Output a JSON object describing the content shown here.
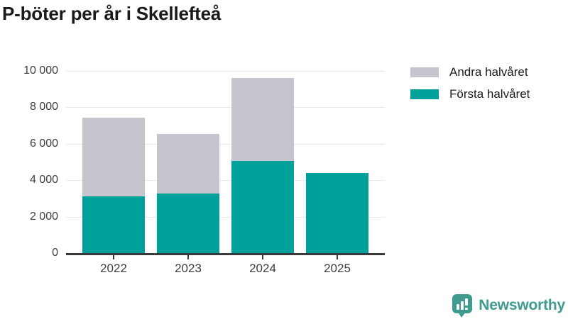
{
  "title": "P-böter per år i Skellefteå",
  "brand": {
    "name": "Newsworthy",
    "color": "#3f9a90"
  },
  "legend": [
    {
      "label": "Andra halvåret",
      "color": "#c6c5cd"
    },
    {
      "label": "Första halvåret",
      "color": "#00a19a"
    }
  ],
  "chart_data": {
    "type": "bar",
    "stacked": true,
    "title": "P-böter per år i Skellefteå",
    "categories": [
      "2022",
      "2023",
      "2024",
      "2025"
    ],
    "series": [
      {
        "name": "Första halvåret",
        "color": "#00a19a",
        "values": [
          3100,
          3250,
          5050,
          4400
        ]
      },
      {
        "name": "Andra halvåret",
        "color": "#c6c5cd",
        "values": [
          4350,
          3300,
          4550,
          0
        ]
      }
    ],
    "totals": [
      7450,
      6550,
      9600,
      4400
    ],
    "xlabel": "",
    "ylabel": "",
    "ylim": [
      0,
      10000
    ],
    "yticks": [
      {
        "value": 0,
        "label": "0"
      },
      {
        "value": 2000,
        "label": "2 000"
      },
      {
        "value": 4000,
        "label": "4 000"
      },
      {
        "value": 6000,
        "label": "6 000"
      },
      {
        "value": 8000,
        "label": "8 000"
      },
      {
        "value": 10000,
        "label": "10 000"
      }
    ],
    "grid": true,
    "legend_position": "top-right",
    "colors": {
      "axis": "#3a3a3a",
      "gridline": "#e8e8ec",
      "tick_label": "#3e3e3e"
    }
  }
}
